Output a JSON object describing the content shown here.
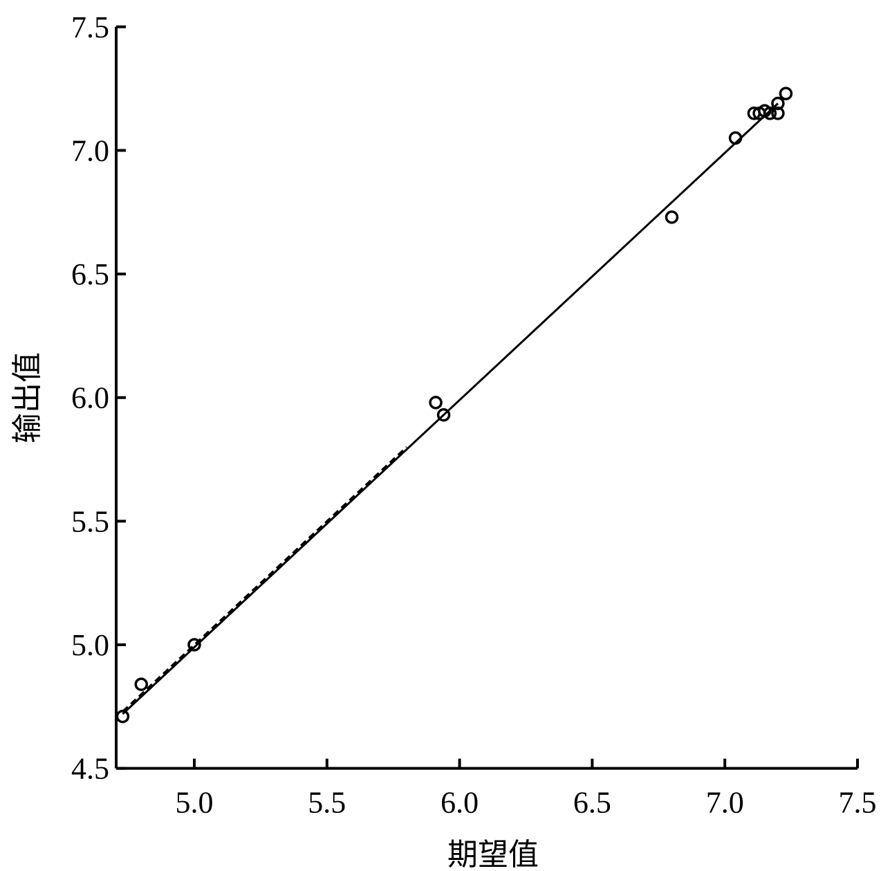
{
  "chart_data": {
    "type": "scatter",
    "title": "",
    "xlabel": "期望值",
    "ylabel": "输出值",
    "xlim": [
      4.7,
      7.5
    ],
    "ylim": [
      4.5,
      7.5
    ],
    "xticks": [
      "5.0",
      "5.5",
      "6.0",
      "6.5",
      "7.0",
      "7.5"
    ],
    "yticks": [
      "4.5",
      "5.0",
      "5.5",
      "6.0",
      "6.5",
      "7.0",
      "7.5"
    ],
    "grid": false,
    "marker": "open-circle",
    "color": "#000000",
    "points": [
      {
        "x": 4.73,
        "y": 4.71
      },
      {
        "x": 4.8,
        "y": 4.84
      },
      {
        "x": 5.0,
        "y": 5.0
      },
      {
        "x": 5.91,
        "y": 5.98
      },
      {
        "x": 5.94,
        "y": 5.93
      },
      {
        "x": 6.8,
        "y": 6.73
      },
      {
        "x": 7.04,
        "y": 7.05
      },
      {
        "x": 7.11,
        "y": 7.15
      },
      {
        "x": 7.13,
        "y": 7.15
      },
      {
        "x": 7.15,
        "y": 7.16
      },
      {
        "x": 7.17,
        "y": 7.15
      },
      {
        "x": 7.2,
        "y": 7.19
      },
      {
        "x": 7.2,
        "y": 7.15
      },
      {
        "x": 7.23,
        "y": 7.23
      }
    ],
    "fit_line": {
      "x": [
        4.73,
        7.2
      ],
      "y": [
        4.72,
        7.19
      ],
      "style": "solid"
    },
    "reference_line": {
      "x": [
        4.73,
        5.8
      ],
      "y": [
        4.73,
        5.8
      ],
      "style": "dashed"
    }
  }
}
